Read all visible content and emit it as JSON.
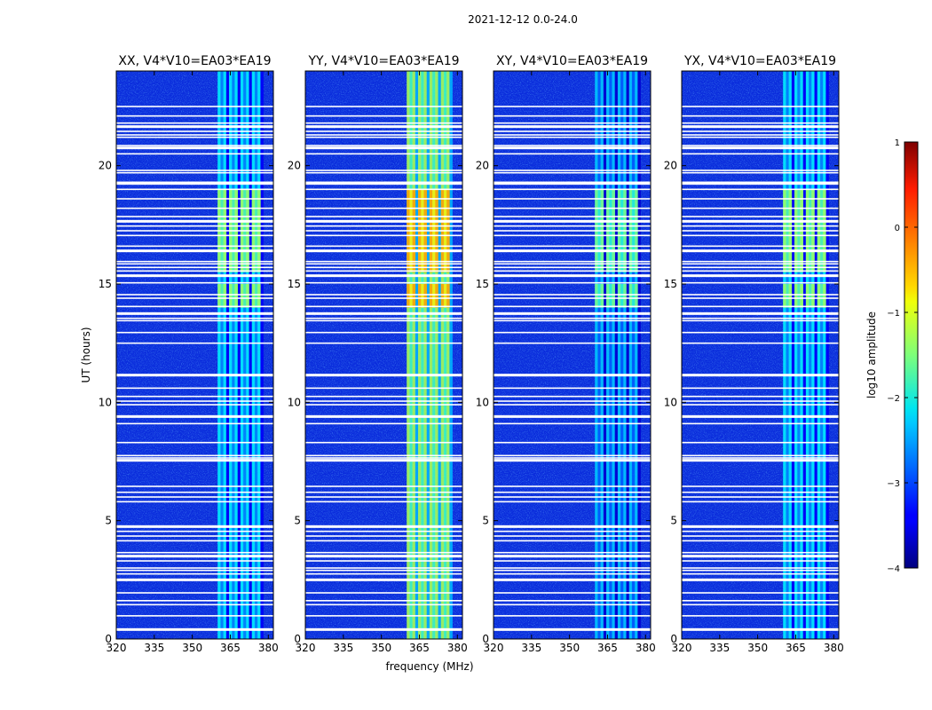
{
  "figure_title": "2021-12-12 0.0-24.0",
  "chart_data": {
    "type": "heatmap",
    "ylabel": "UT (hours)",
    "xlabel": "frequency (MHz)",
    "xlim": [
      320,
      382
    ],
    "ylim": [
      0,
      24
    ],
    "xticks": [
      320,
      335,
      350,
      365,
      380
    ],
    "yticks": [
      0,
      5,
      10,
      15,
      20
    ],
    "colorbar": {
      "label": "log10 amplitude",
      "min": -4,
      "max": 1,
      "ticks": [
        1,
        0,
        -1,
        -2,
        -3,
        -4
      ],
      "tick_labels": [
        "1",
        "0",
        "−1",
        "−2",
        "−3",
        "−4"
      ],
      "colormap": "jet"
    },
    "signal_band_mhz": [
      360,
      378
    ],
    "flagged_hours": [
      0.4,
      0.98,
      1.45,
      1.62,
      1.95,
      2.5,
      2.75,
      2.9,
      3.0,
      3.3,
      3.5,
      3.65,
      4.15,
      4.35,
      4.55,
      4.75,
      5.8,
      6.0,
      6.2,
      6.45,
      7.55,
      7.65,
      7.75,
      8.3,
      9.1,
      9.4,
      9.9,
      10.05,
      10.25,
      10.6,
      11.15,
      12.5,
      12.95,
      13.45,
      13.55,
      13.75,
      14.05,
      14.4,
      14.55,
      15.05,
      15.35,
      15.55,
      15.7,
      15.85,
      15.95,
      16.4,
      16.6,
      17.05,
      17.25,
      17.45,
      17.65,
      17.85,
      18.2,
      18.6,
      19.0,
      19.25,
      19.3,
      19.7,
      19.8,
      20.5,
      20.75,
      20.85,
      21.2,
      21.3,
      21.45,
      21.65,
      21.8,
      22.1,
      22.5
    ],
    "panels": [
      {
        "title": "XX, V4*V10=EA03*EA19",
        "peak_log_amplitude": -1.3
      },
      {
        "title": "YY, V4*V10=EA03*EA19",
        "peak_log_amplitude": -0.4
      },
      {
        "title": "XY, V4*V10=EA03*EA19",
        "peak_log_amplitude": -1.5
      },
      {
        "title": "YX, V4*V10=EA03*EA19",
        "peak_log_amplitude": -1.3
      }
    ]
  }
}
